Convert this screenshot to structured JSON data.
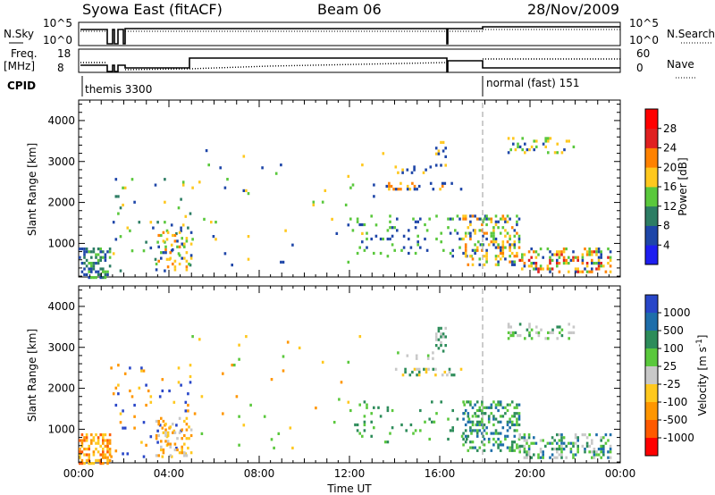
{
  "header": {
    "title": "Syowa East (fitACF)",
    "beam": "Beam 06",
    "date": "28/Nov/2009"
  },
  "panels": {
    "nsky": {
      "left_label": "N.Sky",
      "right_label": "N.Search",
      "left_ticks": [
        "10^5",
        "10^0"
      ],
      "right_ticks": [
        "10^5",
        "10^0"
      ]
    },
    "freq": {
      "left_label_1": "Freq.",
      "left_label_2": "[MHz]",
      "right_label": "Nave",
      "left_ticks": [
        "18",
        "8"
      ],
      "right_ticks": [
        "60",
        "0"
      ]
    },
    "cpid": {
      "label": "CPID",
      "mode_1": "themis 3300",
      "mode_2": "normal (fast) 151"
    }
  },
  "chart_data": [
    {
      "type": "heatmap",
      "title": "Power",
      "xlabel": "Time UT",
      "ylabel": "Slant Range [km]",
      "x_ticks": [
        "00:00",
        "04:00",
        "08:00",
        "12:00",
        "16:00",
        "20:00",
        "00:00"
      ],
      "xlim_hours": [
        0,
        24
      ],
      "y_ticks": [
        1000,
        2000,
        3000,
        4000
      ],
      "ylim": [
        180,
        4500
      ],
      "colorbar": {
        "label": "Power [dB]",
        "ticks": [
          "4",
          "8",
          "12",
          "16",
          "20",
          "24",
          "28"
        ],
        "colors": [
          "#1e1ef0",
          "#1e46a8",
          "#2d7d64",
          "#5ac83c",
          "#ffc81e",
          "#ff8200",
          "#e02020",
          "#ff0000"
        ]
      },
      "scatter_regions": [
        {
          "t": [
            0.0,
            1.4
          ],
          "r": [
            200,
            900
          ],
          "density": 0.45,
          "levels": [
            1,
            2,
            3
          ]
        },
        {
          "t": [
            1.4,
            5.0
          ],
          "r": [
            300,
            2600
          ],
          "density": 0.05,
          "levels": [
            1,
            2,
            3,
            4
          ]
        },
        {
          "t": [
            3.4,
            5.0
          ],
          "r": [
            350,
            1300
          ],
          "density": 0.25,
          "levels": [
            1,
            3,
            4,
            5
          ]
        },
        {
          "t": [
            5.0,
            13.5
          ],
          "r": [
            500,
            3300
          ],
          "density": 0.012,
          "levels": [
            1,
            3,
            4
          ]
        },
        {
          "t": [
            13.5,
            17.0
          ],
          "r": [
            2300,
            2500
          ],
          "density": 0.25,
          "levels": [
            1,
            4,
            5
          ]
        },
        {
          "t": [
            14.0,
            15.8
          ],
          "r": [
            2700,
            2900
          ],
          "density": 0.22,
          "levels": [
            1,
            4
          ]
        },
        {
          "t": [
            12.0,
            18.0
          ],
          "r": [
            700,
            1700
          ],
          "density": 0.08,
          "levels": [
            1,
            3
          ]
        },
        {
          "t": [
            17.0,
            19.5
          ],
          "r": [
            500,
            1700
          ],
          "density": 0.3,
          "levels": [
            1,
            3,
            4,
            5
          ]
        },
        {
          "t": [
            19.5,
            23.6
          ],
          "r": [
            300,
            900
          ],
          "density": 0.35,
          "levels": [
            1,
            3,
            4,
            5,
            6
          ]
        },
        {
          "t": [
            19.0,
            22.0
          ],
          "r": [
            3200,
            3600
          ],
          "density": 0.2,
          "levels": [
            1,
            3,
            4
          ]
        },
        {
          "t": [
            15.8,
            16.3
          ],
          "r": [
            2900,
            3500
          ],
          "density": 0.3,
          "levels": [
            1,
            4
          ]
        }
      ]
    },
    {
      "type": "heatmap",
      "title": "Velocity",
      "xlabel": "Time UT",
      "ylabel": "Slant Range [km]",
      "x_ticks": [
        "00:00",
        "04:00",
        "08:00",
        "12:00",
        "16:00",
        "20:00",
        "00:00"
      ],
      "xlim_hours": [
        0,
        24
      ],
      "y_ticks": [
        1000,
        2000,
        3000,
        4000
      ],
      "ylim": [
        180,
        4500
      ],
      "colorbar": {
        "label": "Velocity [m s",
        "label_sup": "-1",
        "label_end": "]",
        "ticks": [
          "1000",
          "500",
          "100",
          "25",
          "-25",
          "-100",
          "-500",
          "-1000"
        ],
        "colors": [
          "#2846c8",
          "#1e6eaa",
          "#2d8c5a",
          "#5ac83c",
          "#c8c8c8",
          "#ffc81e",
          "#ff9600",
          "#ff5a00",
          "#ff0000"
        ]
      },
      "scatter_regions": [
        {
          "t": [
            0.0,
            1.4
          ],
          "r": [
            200,
            900
          ],
          "density": 0.45,
          "levels": [
            5,
            6,
            7
          ]
        },
        {
          "t": [
            1.4,
            5.0
          ],
          "r": [
            300,
            2600
          ],
          "density": 0.05,
          "levels": [
            5,
            6,
            0
          ]
        },
        {
          "t": [
            3.4,
            5.0
          ],
          "r": [
            350,
            1300
          ],
          "density": 0.25,
          "levels": [
            4,
            5,
            6
          ]
        },
        {
          "t": [
            5.0,
            13.5
          ],
          "r": [
            500,
            3300
          ],
          "density": 0.012,
          "levels": [
            5,
            6,
            3
          ]
        },
        {
          "t": [
            13.5,
            17.0
          ],
          "r": [
            2300,
            2500
          ],
          "density": 0.25,
          "levels": [
            4,
            5,
            2
          ]
        },
        {
          "t": [
            14.0,
            15.8
          ],
          "r": [
            2700,
            2900
          ],
          "density": 0.22,
          "levels": [
            4,
            3
          ]
        },
        {
          "t": [
            12.0,
            18.0
          ],
          "r": [
            700,
            1700
          ],
          "density": 0.08,
          "levels": [
            2,
            3
          ]
        },
        {
          "t": [
            17.0,
            19.5
          ],
          "r": [
            500,
            1700
          ],
          "density": 0.3,
          "levels": [
            2,
            1,
            3
          ]
        },
        {
          "t": [
            19.5,
            23.6
          ],
          "r": [
            300,
            900
          ],
          "density": 0.35,
          "levels": [
            2,
            1,
            4,
            3
          ]
        },
        {
          "t": [
            19.0,
            22.0
          ],
          "r": [
            3200,
            3600
          ],
          "density": 0.2,
          "levels": [
            4,
            3,
            2
          ]
        },
        {
          "t": [
            15.8,
            16.3
          ],
          "r": [
            2900,
            3500
          ],
          "density": 0.3,
          "levels": [
            2,
            4
          ]
        }
      ]
    }
  ]
}
